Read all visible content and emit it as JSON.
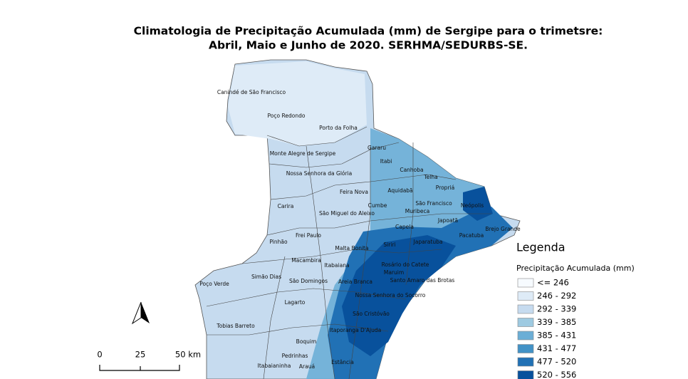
{
  "title": {
    "line1": "Climatologia de Precipitação Acumulada (mm) de Sergipe para o trimetsre:",
    "line2": "Abril, Maio e Junho de 2020. SERHMA/SEDURBS-SE."
  },
  "municipalities": [
    "Canindé de São Francisco",
    "Poço Redondo",
    "Porto da Folha",
    "Monte Alegre de Sergipe",
    "Gararu",
    "Itabi",
    "Nossa Senhora da Glória",
    "Canhoba",
    "Telha",
    "Propriá",
    "Feira Nova",
    "Aquidabã",
    "Neópolis",
    "Carira",
    "Cumbe",
    "São Francisco",
    "Muribeca",
    "São Miguel do Aleixo",
    "Japoatã",
    "Brejo Grande",
    "Frei Paulo",
    "Capela",
    "Pacatuba",
    "Pinhão",
    "Japaratuba",
    "Siriri",
    "Malta Bonita",
    "Macambira",
    "Itabaiana",
    "Rosário do Catete",
    "Maruim",
    "Simão Dias",
    "Santo Amaro das Brotas",
    "São Domingos",
    "Areia Branca",
    "Poço Verde",
    "Nossa Senhora do Socorro",
    "Lagarto",
    "São Cristóvão",
    "Tobias Barreto",
    "Itaporanga D'Ajuda",
    "Boquim",
    "Pedrinhas",
    "Estância",
    "Itabaianinha",
    "Arauá"
  ],
  "legend": {
    "title": "Legenda",
    "subtitle": "Precipitação Acumulada (mm)",
    "classes": [
      {
        "label": "<= 246",
        "color": "#f7fbff"
      },
      {
        "label": "246 - 292",
        "color": "#deebf7"
      },
      {
        "label": "292 - 339",
        "color": "#c6dbef"
      },
      {
        "label": "339 - 385",
        "color": "#9ecae1"
      },
      {
        "label": "385 - 431",
        "color": "#6baed6"
      },
      {
        "label": "431 - 477",
        "color": "#4292c6"
      },
      {
        "label": "477 - 520",
        "color": "#2171b5"
      },
      {
        "label": "520 - 556",
        "color": "#08519c"
      }
    ]
  },
  "scale_bar": {
    "labels": [
      "0",
      "25",
      "50 km"
    ]
  }
}
